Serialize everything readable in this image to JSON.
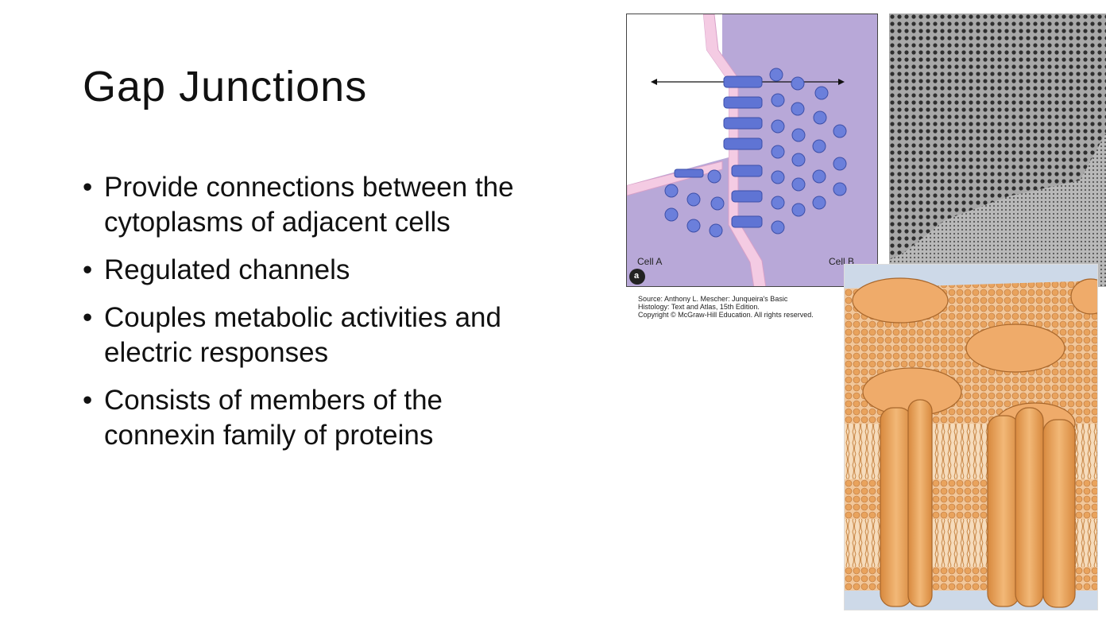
{
  "slide": {
    "title": "Gap Junctions",
    "bullets": [
      "Provide connections between the cytoplasms of adjacent cells",
      "Regulated channels",
      "Couples metabolic activities and electric responses",
      "Consists of members of the connexin family of proteins"
    ]
  },
  "figure_a": {
    "panel_label": "a",
    "left_cell_label": "Cell A",
    "right_cell_label": "Cell B",
    "caption_lines": [
      "Source: Anthony L. Mescher: Junqueira's Basic",
      "Histology: Text and Atlas, 15th Edition.",
      "Copyright © McGraw-Hill Education. All rights reserved."
    ]
  },
  "colors": {
    "membrane_fill": "#b7a6d6",
    "connexon": "#5b70d0",
    "membrane_edge": "#f3c9e3",
    "protein_orange": "#e9a35d",
    "micrograph_bg": "#8c8c8c"
  }
}
